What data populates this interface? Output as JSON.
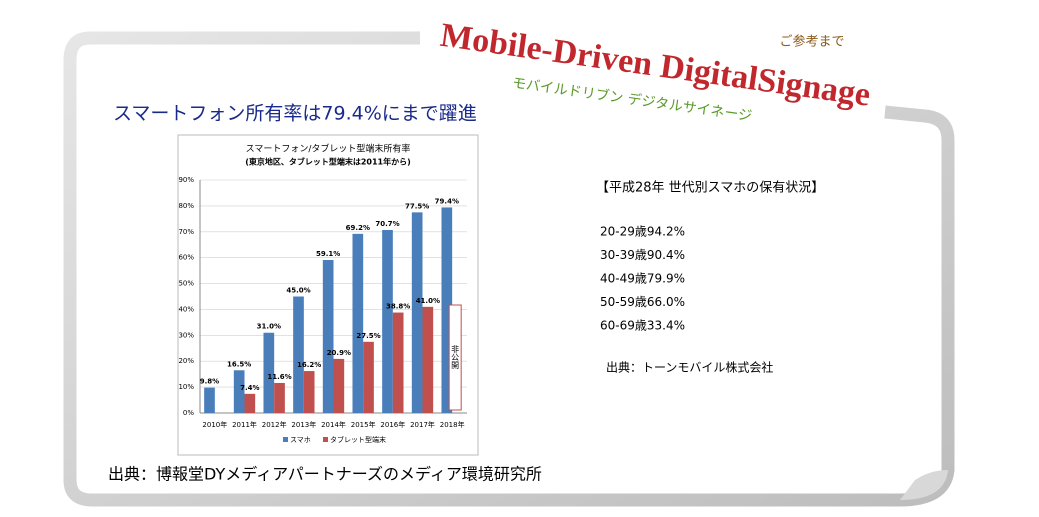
{
  "banner": {
    "title": "Mobile-Driven DigitalSignage",
    "subtitle": "モバイルドリブン デジタルサイネージ",
    "note": "ご参考まで"
  },
  "heading": "スマートフォン所有率は79.4%にまで躍進",
  "chart_data": {
    "type": "bar",
    "title": "スマートフォン/タブレット型端末所有率",
    "subtitle": "(東京地区、タブレット型端末は2011年から)",
    "categories": [
      "2010年",
      "2011年",
      "2012年",
      "2013年",
      "2014年",
      "2015年",
      "2016年",
      "2017年",
      "2018年"
    ],
    "series": [
      {
        "name": "スマホ",
        "color": "#4a7ebb",
        "values": [
          9.8,
          16.5,
          31.0,
          45.0,
          59.1,
          69.2,
          70.7,
          77.5,
          79.4
        ],
        "value_labels": [
          "9.8%",
          "16.5%",
          "31.0%",
          "45.0%",
          "59.1%",
          "69.2%",
          "70.7%",
          "77.5%",
          "79.4%"
        ]
      },
      {
        "name": "タブレット型端末",
        "color": "#c0504d",
        "values": [
          null,
          7.4,
          11.6,
          16.2,
          20.9,
          27.5,
          38.8,
          41.0,
          null
        ],
        "value_labels": [
          null,
          "7.4%",
          "11.6%",
          "16.2%",
          "20.9%",
          "27.5%",
          "38.8%",
          "41.0%",
          null
        ]
      }
    ],
    "annotation": "非公開",
    "ylim": [
      0,
      90
    ],
    "yticks": [
      {
        "value": 0,
        "label": "0%"
      },
      {
        "value": 10,
        "label": "10%"
      },
      {
        "value": 20,
        "label": "20%"
      },
      {
        "value": 30,
        "label": "30%"
      },
      {
        "value": 40,
        "label": "40%"
      },
      {
        "value": 50,
        "label": "50%"
      },
      {
        "value": 60,
        "label": "60%"
      },
      {
        "value": 70,
        "label": "70%"
      },
      {
        "value": 80,
        "label": "80%"
      },
      {
        "value": 90,
        "label": "90%"
      }
    ],
    "grid": true
  },
  "panel": {
    "title": "【平成28年 世代別スマホの保有状況】",
    "items": [
      "20-29歳94.2%",
      "30-39歳90.4%",
      "40-49歳79.9%",
      "50-59歳66.0%",
      "60-69歳33.4%"
    ],
    "source": "出典：トーンモバイル株式会社"
  },
  "footer": "出典：博報堂DYメディアパートナーズのメディア環境研究所"
}
